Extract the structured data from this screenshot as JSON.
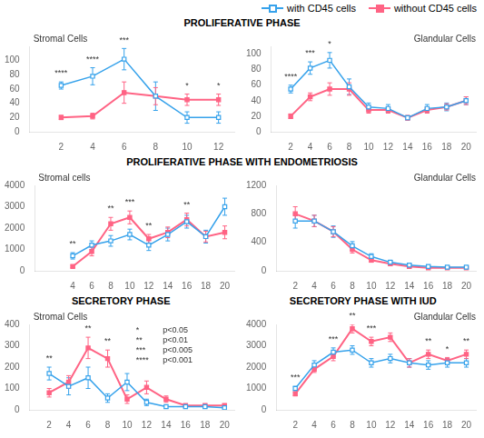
{
  "chart_data": [
    {
      "type": "line",
      "title": "PROLIFERATIVE PHASE",
      "subtitle": "Stromal Cells",
      "x": [
        2,
        4,
        6,
        8,
        10,
        12
      ],
      "series": [
        {
          "name": "with CD45 cells",
          "marker": "square_open",
          "values": [
            65,
            78,
            102,
            50,
            20,
            20
          ],
          "errors": [
            5,
            12,
            15,
            20,
            8,
            8
          ]
        },
        {
          "name": "without CD45 cells",
          "marker": "square",
          "values": [
            20,
            22,
            55,
            50,
            45,
            45
          ],
          "errors": [
            3,
            4,
            15,
            12,
            8,
            8
          ]
        }
      ],
      "xlim": [
        0,
        13
      ],
      "xticks": [
        2,
        4,
        6,
        8,
        10,
        12
      ],
      "ylim": [
        0,
        120
      ],
      "yticks": [
        0,
        20,
        40,
        60,
        80,
        100
      ],
      "grid": false,
      "annotations": [
        {
          "x": 2,
          "text": "****"
        },
        {
          "x": 4,
          "text": "****"
        },
        {
          "x": 6,
          "text": "***"
        },
        {
          "x": 10,
          "text": "*"
        },
        {
          "x": 12,
          "text": "*"
        }
      ]
    },
    {
      "type": "line",
      "subtitle": "Glandular Cells",
      "legend": "upper right",
      "x": [
        2,
        4,
        6,
        8,
        10,
        12,
        14,
        16,
        18,
        20
      ],
      "series": [
        {
          "name": "with CD45 cells",
          "marker": "square_open",
          "values": [
            55,
            82,
            92,
            58,
            32,
            30,
            18,
            30,
            32,
            40
          ],
          "errors": [
            5,
            8,
            10,
            10,
            5,
            5,
            3,
            5,
            5,
            5
          ]
        },
        {
          "name": "without CD45 cells",
          "marker": "square",
          "values": [
            20,
            45,
            55,
            55,
            28,
            28,
            18,
            28,
            32,
            40
          ],
          "errors": [
            3,
            5,
            8,
            8,
            4,
            4,
            3,
            4,
            4,
            5
          ]
        }
      ],
      "xlim": [
        0,
        21
      ],
      "xticks": [
        2,
        4,
        6,
        8,
        10,
        12,
        14,
        16,
        18,
        20
      ],
      "ylim": [
        0,
        110
      ],
      "yticks": [
        0,
        20,
        40,
        60,
        80,
        100
      ],
      "grid": false,
      "annotations": [
        {
          "x": 2,
          "text": "****"
        },
        {
          "x": 4,
          "text": "***"
        },
        {
          "x": 6,
          "text": "*"
        }
      ]
    },
    {
      "type": "line",
      "title": "PROLIFERATIVE PHASE WITH ENDOMETRIOSIS",
      "subtitle": "Stromal cells",
      "x": [
        4,
        6,
        8,
        10,
        12,
        14,
        16,
        18,
        20
      ],
      "series": [
        {
          "name": "with CD45 cells",
          "marker": "square_open",
          "values": [
            700,
            1200,
            1400,
            1700,
            1200,
            1700,
            2300,
            1600,
            3000
          ],
          "errors": [
            150,
            200,
            250,
            250,
            250,
            300,
            300,
            300,
            400
          ]
        },
        {
          "name": "without CD45 cells",
          "marker": "square",
          "values": [
            200,
            900,
            2200,
            2500,
            1500,
            1800,
            2400,
            1600,
            1800
          ],
          "errors": [
            50,
            200,
            300,
            300,
            200,
            250,
            300,
            250,
            300
          ]
        }
      ],
      "xlim": [
        0,
        21
      ],
      "xticks": [
        4,
        6,
        8,
        10,
        12,
        14,
        16,
        18,
        20
      ],
      "ylim": [
        0,
        4000
      ],
      "yticks": [
        0,
        1000,
        2000,
        3000,
        4000
      ],
      "grid": false,
      "annotations": [
        {
          "x": 4,
          "text": "**"
        },
        {
          "x": 8,
          "text": "**"
        },
        {
          "x": 10,
          "text": "***"
        },
        {
          "x": 12,
          "text": "**"
        },
        {
          "x": 16,
          "text": "**"
        }
      ]
    },
    {
      "type": "line",
      "subtitle": "Glandular Cells",
      "x": [
        2,
        4,
        6,
        8,
        10,
        12,
        14,
        16,
        18,
        20
      ],
      "series": [
        {
          "name": "with CD45 cells",
          "marker": "square_open",
          "values": [
            700,
            700,
            550,
            350,
            200,
            120,
            80,
            60,
            50,
            50
          ],
          "errors": [
            100,
            80,
            80,
            60,
            40,
            30,
            20,
            15,
            15,
            10
          ]
        },
        {
          "name": "without CD45 cells",
          "marker": "square",
          "values": [
            800,
            700,
            550,
            300,
            150,
            100,
            60,
            40,
            40,
            40
          ],
          "errors": [
            100,
            80,
            70,
            50,
            30,
            20,
            15,
            10,
            10,
            10
          ]
        }
      ],
      "xlim": [
        0,
        21
      ],
      "xticks": [
        2,
        4,
        6,
        8,
        10,
        12,
        14,
        16,
        18,
        20
      ],
      "ylim": [
        0,
        1200
      ],
      "yticks": [
        0,
        400,
        800,
        1200
      ],
      "grid": false
    },
    {
      "type": "line",
      "title": "SECRETORY PHASE",
      "subtitle": "Stromal Cells",
      "x": [
        2,
        4,
        6,
        8,
        10,
        12,
        14,
        16,
        18,
        20
      ],
      "series": [
        {
          "name": "with CD45 cells",
          "marker": "square_open",
          "values": [
            170,
            110,
            150,
            55,
            130,
            35,
            15,
            15,
            15,
            10
          ],
          "errors": [
            30,
            40,
            50,
            20,
            40,
            15,
            8,
            8,
            8,
            5
          ]
        },
        {
          "name": "without CD45 cells",
          "marker": "square",
          "values": [
            80,
            130,
            290,
            240,
            50,
            105,
            50,
            20,
            20,
            20
          ],
          "errors": [
            20,
            30,
            50,
            40,
            20,
            30,
            15,
            8,
            8,
            8
          ]
        }
      ],
      "xlim": [
        0,
        21
      ],
      "xticks": [
        2,
        4,
        6,
        8,
        10,
        12,
        14,
        16,
        18,
        20
      ],
      "ylim": [
        0,
        400
      ],
      "yticks": [
        0,
        100,
        200,
        300,
        400
      ],
      "grid": false,
      "annotations": [
        {
          "x": 2,
          "text": "**"
        },
        {
          "x": 6,
          "text": "**"
        },
        {
          "x": 8,
          "text": "**"
        },
        {
          "symbol": "*",
          "text": "p<0.05"
        },
        {
          "symbol": "**",
          "text": "p<0.01"
        },
        {
          "symbol": "***",
          "text": "p<0.005"
        },
        {
          "symbol": "****",
          "text": "p<0.001"
        }
      ]
    },
    {
      "type": "line",
      "title": "SECRETORY PHASE WITH IUD",
      "subtitle": "Glandular Cells",
      "x": [
        2,
        4,
        6,
        8,
        10,
        12,
        14,
        16,
        18,
        20
      ],
      "series": [
        {
          "name": "with CD45 cells",
          "marker": "square_open",
          "values": [
            1000,
            2100,
            2700,
            2800,
            2200,
            2400,
            2200,
            2100,
            2200,
            2200
          ],
          "errors": [
            100,
            200,
            200,
            200,
            200,
            200,
            200,
            200,
            200,
            200
          ]
        },
        {
          "name": "without CD45 cells",
          "marker": "square",
          "values": [
            750,
            1900,
            2500,
            3800,
            3200,
            3400,
            2200,
            2600,
            2300,
            2600
          ],
          "errors": [
            100,
            150,
            200,
            200,
            200,
            200,
            200,
            200,
            150,
            200
          ]
        }
      ],
      "xlim": [
        0,
        21
      ],
      "xticks": [
        2,
        4,
        6,
        8,
        10,
        12,
        14,
        16,
        18,
        20
      ],
      "ylim": [
        0,
        4000
      ],
      "yticks": [
        0,
        1000,
        2000,
        3000,
        4000
      ],
      "grid": false,
      "annotations": [
        {
          "x": 2,
          "text": "***"
        },
        {
          "x": 6,
          "text": "***"
        },
        {
          "x": 8,
          "text": "**"
        },
        {
          "x": 10,
          "text": "***"
        },
        {
          "x": 16,
          "text": "**"
        },
        {
          "x": 18,
          "text": "*"
        },
        {
          "x": 20,
          "text": "**"
        }
      ]
    }
  ]
}
